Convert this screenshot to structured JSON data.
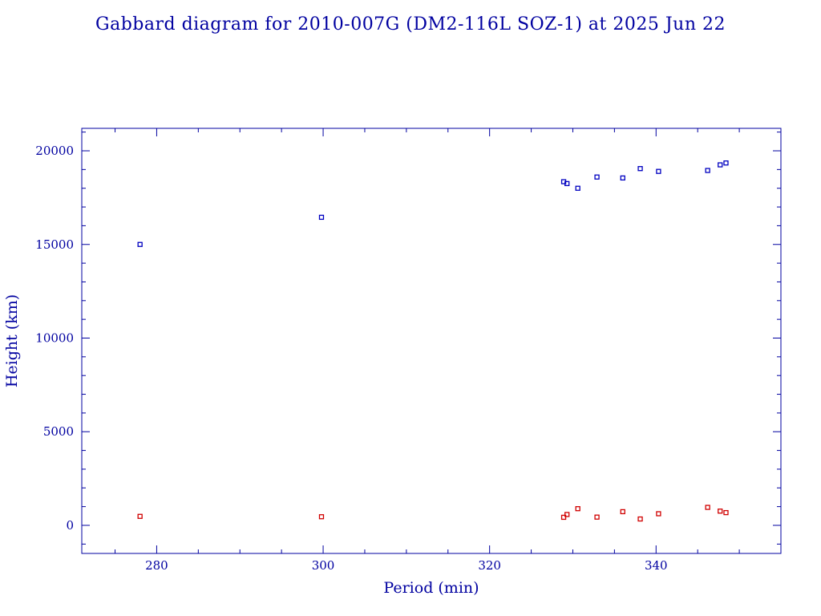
{
  "chart_data": {
    "type": "scatter",
    "title": "Gabbard diagram for 2010-007G (DM2-116L SOZ-1) at 2025 Jun 22",
    "xlabel": "Period (min)",
    "ylabel": "Height (km)",
    "xlim": [
      271,
      355
    ],
    "ylim": [
      -1500,
      21200
    ],
    "x_ticks": [
      280,
      300,
      320,
      340
    ],
    "x_tick_labels": [
      "280",
      "300",
      "320",
      "340"
    ],
    "y_ticks": [
      0,
      5000,
      10000,
      15000,
      20000
    ],
    "y_tick_labels": [
      "0",
      "5000",
      "10000",
      "15000",
      "20000"
    ],
    "grid": false,
    "legend": "none",
    "series": [
      {
        "color": "#0000c0",
        "points": [
          [
            278.0,
            15000
          ],
          [
            299.8,
            16450
          ],
          [
            328.9,
            18350
          ],
          [
            329.3,
            18250
          ],
          [
            330.6,
            18000
          ],
          [
            332.9,
            18600
          ],
          [
            336.0,
            18550
          ],
          [
            338.1,
            19050
          ],
          [
            340.3,
            18900
          ],
          [
            346.2,
            18950
          ],
          [
            347.7,
            19250
          ],
          [
            348.4,
            19350
          ]
        ]
      },
      {
        "color": "#d00000",
        "points": [
          [
            278.0,
            480
          ],
          [
            299.8,
            460
          ],
          [
            328.9,
            430
          ],
          [
            329.3,
            580
          ],
          [
            330.6,
            890
          ],
          [
            332.9,
            440
          ],
          [
            336.0,
            730
          ],
          [
            338.1,
            340
          ],
          [
            340.3,
            620
          ],
          [
            346.2,
            960
          ],
          [
            347.7,
            760
          ],
          [
            348.4,
            680
          ]
        ]
      }
    ]
  }
}
